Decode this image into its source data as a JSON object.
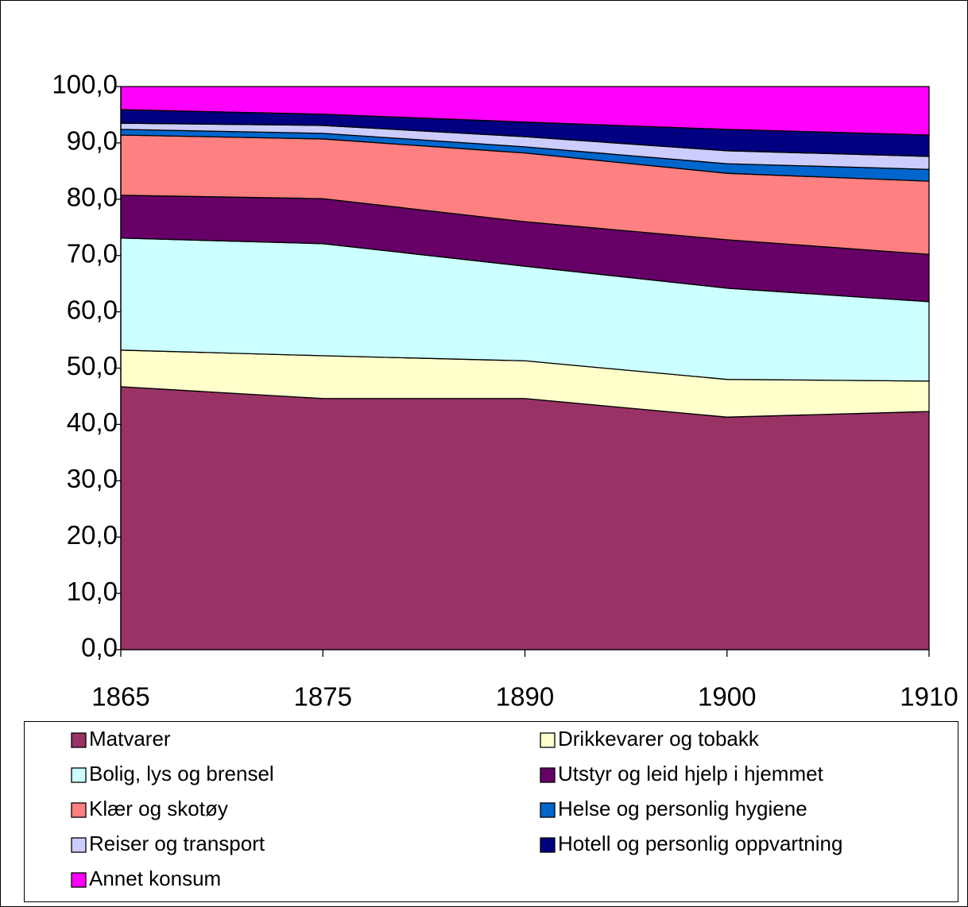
{
  "chart_data": {
    "type": "stacked-area",
    "categories": [
      "1865",
      "1875",
      "1890",
      "1900",
      "1910"
    ],
    "ylim": [
      0,
      100
    ],
    "yticks": [
      {
        "value": 0,
        "label": "0,0"
      },
      {
        "value": 10,
        "label": "10,0"
      },
      {
        "value": 20,
        "label": "20,0"
      },
      {
        "value": 30,
        "label": "30,0"
      },
      {
        "value": 40,
        "label": "40,0"
      },
      {
        "value": 50,
        "label": "50,0"
      },
      {
        "value": 60,
        "label": "60,0"
      },
      {
        "value": 70,
        "label": "70,0"
      },
      {
        "value": 80,
        "label": "80,0"
      },
      {
        "value": 90,
        "label": "90,0"
      },
      {
        "value": 100,
        "label": "100,0"
      }
    ],
    "series": [
      {
        "name": "Matvarer",
        "color": "#993366",
        "values": [
          46.7,
          44.6,
          44.6,
          41.3,
          42.3
        ]
      },
      {
        "name": "Drikkevarer og tobakk",
        "color": "#FFFFCC",
        "values": [
          6.5,
          7.6,
          6.7,
          6.7,
          5.4
        ]
      },
      {
        "name": "Bolig, lys og brensel",
        "color": "#CCFFFF",
        "values": [
          19.9,
          19.9,
          16.8,
          16.2,
          14.1
        ]
      },
      {
        "name": "Utstyr og leid hjelp i hjemmet",
        "color": "#660066",
        "values": [
          7.6,
          8.0,
          7.9,
          8.6,
          8.4
        ]
      },
      {
        "name": "Klær og skotøy",
        "color": "#FF8080",
        "values": [
          10.7,
          10.6,
          12.2,
          11.8,
          13.0
        ]
      },
      {
        "name": "Helse og personlig hygiene",
        "color": "#0066CC",
        "values": [
          1.0,
          1.0,
          1.1,
          1.7,
          2.1
        ]
      },
      {
        "name": "Reiser og transport",
        "color": "#CCCCFF",
        "values": [
          1.1,
          1.4,
          1.8,
          2.3,
          2.3
        ]
      },
      {
        "name": "Hotell og personlig oppvartning",
        "color": "#000080",
        "values": [
          2.4,
          2.0,
          2.6,
          3.8,
          3.8
        ]
      },
      {
        "name": "Annet konsum",
        "color": "#FF00FF",
        "values": [
          4.1,
          4.9,
          6.3,
          7.6,
          8.6
        ]
      }
    ]
  }
}
